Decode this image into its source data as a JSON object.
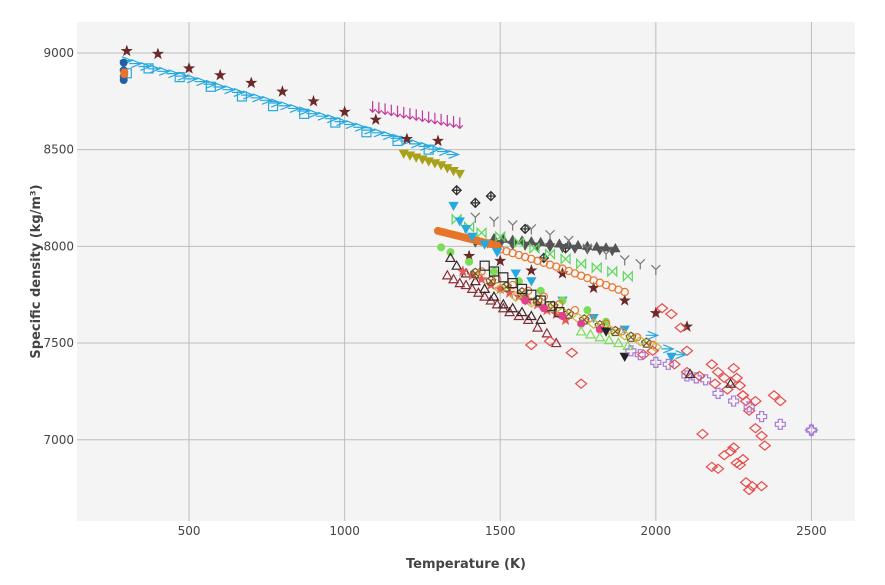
{
  "chart_data": {
    "type": "scatter",
    "xlabel": "Temperature (K)",
    "ylabel": "Specific density (kg/m³)",
    "xlim": [
      140,
      2640
    ],
    "ylim": [
      6580,
      9160
    ],
    "xticks": [
      500,
      1000,
      1500,
      2000,
      2500
    ],
    "yticks": [
      7000,
      7500,
      8000,
      8500,
      9000
    ],
    "grid": true,
    "legend": "none",
    "series": [
      {
        "marker": "tri_right",
        "color": "#26a9e0",
        "x": [
          300,
          330,
          360,
          390,
          420,
          450,
          480,
          510,
          540,
          570,
          600,
          630,
          660,
          690,
          720,
          750,
          780,
          810,
          840,
          870,
          900,
          930,
          960,
          990,
          1020,
          1050,
          1080,
          1110,
          1140,
          1170,
          1200,
          1230,
          1260,
          1290,
          1320,
          1350
        ],
        "y": [
          8960,
          8945,
          8930,
          8918,
          8905,
          8893,
          8880,
          8866,
          8852,
          8838,
          8824,
          8810,
          8796,
          8782,
          8768,
          8755,
          8741,
          8727,
          8713,
          8700,
          8686,
          8673,
          8660,
          8645,
          8630,
          8616,
          8601,
          8587,
          8573,
          8559,
          8545,
          8530,
          8517,
          8503,
          8490,
          8475
        ]
      },
      {
        "marker": "square",
        "color": "#26a9e0",
        "x": [
          300,
          370,
          470,
          570,
          670,
          770,
          870,
          970,
          1070,
          1170,
          1270
        ],
        "y": [
          8895,
          8920,
          8875,
          8825,
          8775,
          8725,
          8685,
          8640,
          8590,
          8545,
          8500
        ]
      },
      {
        "marker": "star",
        "color": "#6b2a2a",
        "x": [
          300,
          400,
          500,
          600,
          700,
          800,
          900,
          1000,
          1100,
          1200,
          1300,
          1400,
          1500,
          1600,
          1700,
          1800,
          1900,
          2000,
          2100
        ],
        "y": [
          9010,
          8995,
          8920,
          8885,
          8845,
          8800,
          8750,
          8695,
          8655,
          8555,
          8545,
          7950,
          7925,
          7875,
          7860,
          7785,
          7720,
          7655,
          7585
        ]
      },
      {
        "marker": "circle",
        "color": "#1f5fa6",
        "x": [
          290,
          290,
          290,
          290
        ],
        "y": [
          8950,
          8910,
          8880,
          8860
        ]
      },
      {
        "marker": "circle",
        "color": "#e8742a",
        "x": [
          292,
          292
        ],
        "y": [
          8900,
          8890
        ]
      },
      {
        "marker": "tri_down_line",
        "color": "#c2379b",
        "x": [
          1090,
          1110,
          1130,
          1150,
          1170,
          1190,
          1210,
          1230,
          1250,
          1270,
          1290,
          1310,
          1330,
          1350,
          1370
        ],
        "y": [
          8720,
          8714,
          8708,
          8702,
          8696,
          8690,
          8684,
          8678,
          8672,
          8666,
          8660,
          8654,
          8648,
          8642,
          8636
        ]
      },
      {
        "marker": "tri_down",
        "color": "#a8a11a",
        "x": [
          1190,
          1210,
          1230,
          1250,
          1270,
          1290,
          1310,
          1330,
          1350,
          1370
        ],
        "y": [
          8480,
          8470,
          8460,
          8450,
          8440,
          8430,
          8420,
          8405,
          8390,
          8375
        ]
      },
      {
        "marker": "diamond_x",
        "color": "#2b2b2b",
        "x": [
          1360,
          1420,
          1470,
          1580,
          1640,
          1710
        ],
        "y": [
          8290,
          8225,
          8260,
          8090,
          7940,
          7990
        ]
      },
      {
        "marker": "tri_down",
        "color": "#555555",
        "x": [
          1420,
          1460,
          1500,
          1540,
          1580,
          1620,
          1660,
          1700,
          1740,
          1780,
          1820,
          1860
        ],
        "y": [
          8020,
          8016,
          8012,
          8008,
          8004,
          8000,
          7996,
          7992,
          7988,
          7984,
          7980,
          7976
        ]
      },
      {
        "marker": "tri_up",
        "color": "#555555",
        "x": [
          1480,
          1510,
          1540,
          1570,
          1600,
          1630,
          1660,
          1690,
          1720,
          1750,
          1780,
          1810,
          1840,
          1870
        ],
        "y": [
          8042,
          8038,
          8034,
          8030,
          8026,
          8022,
          8018,
          8014,
          8010,
          8006,
          8002,
          7998,
          7994,
          7990
        ]
      },
      {
        "marker": "tri_line",
        "color": "#777777",
        "x": [
          1420,
          1480,
          1540,
          1600,
          1660,
          1720,
          1780,
          1840,
          1900,
          1950,
          2000
        ],
        "y": [
          8150,
          8130,
          8110,
          8090,
          8060,
          8030,
          7990,
          7960,
          7930,
          7910,
          7880
        ]
      },
      {
        "marker": "bowtie",
        "color": "#5cd65c",
        "x": [
          1360,
          1400,
          1440,
          1500,
          1560,
          1610,
          1660,
          1710,
          1760,
          1810,
          1860,
          1910
        ],
        "y": [
          8140,
          8100,
          8070,
          8050,
          8020,
          7990,
          7960,
          7935,
          7910,
          7890,
          7870,
          7845
        ]
      },
      {
        "marker": "circle",
        "color": "#e8742a",
        "x": [
          1300,
          1310,
          1320,
          1330,
          1340,
          1350,
          1360,
          1370,
          1380,
          1390,
          1400,
          1410,
          1420,
          1430,
          1440,
          1450,
          1460,
          1470,
          1480,
          1490
        ],
        "y": [
          8080,
          8076,
          8072,
          8068,
          8064,
          8060,
          8056,
          8052,
          8048,
          8044,
          8040,
          8036,
          8032,
          8028,
          8024,
          8020,
          8016,
          8012,
          8008,
          8004
        ]
      },
      {
        "marker": "circle_open",
        "color": "#e8742a",
        "x": [
          1500,
          1520,
          1540,
          1560,
          1580,
          1600,
          1620,
          1640,
          1660,
          1680,
          1700,
          1720,
          1740,
          1760,
          1780,
          1800,
          1820,
          1840,
          1860,
          1880,
          1900
        ],
        "y": [
          7985,
          7975,
          7965,
          7955,
          7945,
          7935,
          7925,
          7915,
          7905,
          7895,
          7885,
          7873,
          7860,
          7848,
          7836,
          7824,
          7812,
          7800,
          7788,
          7776,
          7764
        ]
      },
      {
        "marker": "tri_down",
        "color": "#26a9e0",
        "x": [
          1350,
          1370,
          1390,
          1410,
          1450,
          1490,
          1550,
          1600,
          1700,
          1800,
          1900,
          2050
        ],
        "y": [
          8210,
          8130,
          8090,
          8050,
          8010,
          7970,
          7860,
          7820,
          7720,
          7630,
          7570,
          7430
        ]
      },
      {
        "marker": "circle",
        "color": "#7bdc57",
        "x": [
          1310,
          1340,
          1400,
          1480,
          1560,
          1630,
          1700,
          1780,
          1840
        ],
        "y": [
          7995,
          7970,
          7920,
          7870,
          7820,
          7770,
          7720,
          7670,
          7610
        ]
      },
      {
        "marker": "triangle",
        "color": "#8a2f3a",
        "x": [
          1330,
          1350,
          1370,
          1390,
          1410,
          1430,
          1450,
          1470,
          1490,
          1510,
          1530,
          1560,
          1590,
          1620,
          1650,
          1680
        ],
        "y": [
          7850,
          7830,
          7810,
          7800,
          7780,
          7760,
          7740,
          7720,
          7700,
          7680,
          7660,
          7640,
          7620,
          7580,
          7550,
          7500
        ]
      },
      {
        "marker": "triangle",
        "color": "#3a2626",
        "x": [
          1340,
          1360,
          1390,
          1420,
          1450,
          1480,
          1510,
          1540,
          1570,
          1600,
          1630
        ],
        "y": [
          7940,
          7900,
          7860,
          7820,
          7780,
          7740,
          7700,
          7680,
          7660,
          7640,
          7620
        ]
      },
      {
        "marker": "star",
        "color": "#e85a5a",
        "x": [
          1380,
          1410,
          1440,
          1470,
          1500,
          1530,
          1560,
          1590,
          1620,
          1650,
          1680,
          1710
        ],
        "y": [
          7870,
          7850,
          7830,
          7800,
          7780,
          7760,
          7740,
          7720,
          7700,
          7670,
          7650,
          7620
        ]
      },
      {
        "marker": "pentagon_x",
        "color": "#6b5a1a",
        "x": [
          1420,
          1470,
          1520,
          1570,
          1620,
          1670,
          1720,
          1770,
          1820,
          1870,
          1920,
          1970
        ],
        "y": [
          7860,
          7820,
          7790,
          7760,
          7720,
          7690,
          7650,
          7620,
          7590,
          7560,
          7530,
          7500
        ]
      },
      {
        "marker": "circle_open",
        "color": "#e8742a",
        "x": [
          1440,
          1490,
          1540,
          1590,
          1640,
          1690,
          1740,
          1790,
          1840,
          1890,
          1940,
          1990
        ],
        "y": [
          7870,
          7830,
          7800,
          7770,
          7740,
          7700,
          7670,
          7630,
          7600,
          7560,
          7530,
          7490
        ]
      },
      {
        "marker": "diamond",
        "color": "#c8b83a",
        "x": [
          1500,
          1550,
          1600,
          1650,
          1700,
          1750,
          1800,
          1850,
          1900,
          1950,
          2000
        ],
        "y": [
          7780,
          7740,
          7710,
          7690,
          7660,
          7630,
          7600,
          7570,
          7540,
          7510,
          7480
        ]
      },
      {
        "marker": "square",
        "color": "#2b2b2b",
        "x": [
          1450,
          1480,
          1510,
          1540,
          1570,
          1600,
          1630,
          1660,
          1690
        ],
        "y": [
          7900,
          7870,
          7840,
          7810,
          7780,
          7750,
          7720,
          7690,
          7660
        ]
      },
      {
        "marker": "circle",
        "color": "#e0418a",
        "x": [
          1580,
          1640,
          1700,
          1760,
          1820
        ],
        "y": [
          7720,
          7680,
          7640,
          7600,
          7570
        ]
      },
      {
        "marker": "triangle",
        "color": "#7bdc57",
        "x": [
          1760,
          1790,
          1820,
          1850,
          1880,
          1910
        ],
        "y": [
          7560,
          7545,
          7530,
          7515,
          7500,
          7485
        ]
      },
      {
        "marker": "tri_down",
        "color": "#222222",
        "x": [
          1840,
          1900
        ],
        "y": [
          7560,
          7430
        ]
      },
      {
        "marker": "diamond",
        "color": "#e84a4a",
        "x": [
          1600,
          1660,
          1730,
          1760,
          1960,
          1990,
          2020,
          2050,
          2080,
          2100,
          2180,
          2200,
          2220,
          2240,
          2250,
          2260,
          2270,
          2280,
          2290,
          2300,
          2320,
          2340,
          2350,
          2380,
          2400
        ],
        "y": [
          7490,
          7510,
          7450,
          7290,
          7440,
          7460,
          7680,
          7650,
          7580,
          7460,
          7390,
          7350,
          7320,
          7300,
          7370,
          7320,
          7280,
          7230,
          7200,
          7150,
          7060,
          7020,
          6970,
          7230,
          7200
        ]
      },
      {
        "marker": "diamond",
        "color": "#e84a4a",
        "x": [
          2150,
          2180,
          2200,
          2220,
          2240,
          2250,
          2260,
          2270,
          2280,
          2290,
          2300,
          2310,
          2340
        ],
        "y": [
          7030,
          6860,
          6850,
          6920,
          6940,
          6960,
          6880,
          6870,
          6900,
          6780,
          6740,
          6760,
          6760
        ]
      },
      {
        "marker": "cross_open",
        "color": "#a87ad6",
        "x": [
          1920,
          1950,
          2000,
          2040,
          2100,
          2130,
          2160,
          2200,
          2250,
          2300,
          2340,
          2400,
          2500
        ],
        "y": [
          7460,
          7440,
          7400,
          7390,
          7330,
          7320,
          7310,
          7240,
          7200,
          7170,
          7120,
          7080,
          7050
        ]
      },
      {
        "marker": "tri_right",
        "color": "#26a9e0",
        "x": [
          1990,
          2040,
          2080
        ],
        "y": [
          7540,
          7470,
          7440
        ]
      },
      {
        "marker": "diamond",
        "color": "#e84a4a",
        "x": [
          2060,
          2100,
          2140,
          2190,
          2230,
          2280,
          2320
        ],
        "y": [
          7390,
          7350,
          7330,
          7290,
          7260,
          7230,
          7200
        ]
      },
      {
        "marker": "triangle",
        "color": "#333333",
        "x": [
          2110,
          2240
        ],
        "y": [
          7340,
          7290
        ]
      },
      {
        "marker": "star4",
        "color": "#a87ad6",
        "x": [
          2500
        ],
        "y": [
          7050
        ]
      }
    ]
  }
}
